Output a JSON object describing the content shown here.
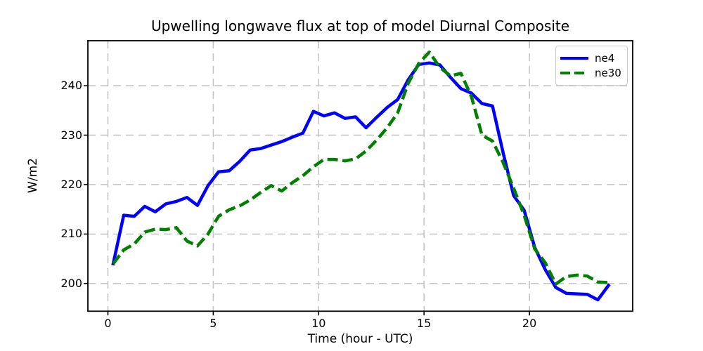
{
  "chart_data": {
    "type": "line",
    "title": "Upwelling longwave flux at top of model Diurnal Composite",
    "xlabel": "Time (hour - UTC)",
    "ylabel": "W/m2",
    "xlim": [
      -0.95,
      24.9
    ],
    "ylim": [
      194.4,
      249.1
    ],
    "xticks": [
      0,
      5,
      10,
      15,
      20
    ],
    "yticks": [
      200,
      210,
      220,
      230,
      240
    ],
    "grid": true,
    "grid_color": "#c6c6c6",
    "legend_position": "upper right",
    "x": [
      0.25,
      0.75,
      1.25,
      1.75,
      2.25,
      2.75,
      3.25,
      3.75,
      4.25,
      4.75,
      5.25,
      5.75,
      6.25,
      6.75,
      7.25,
      7.75,
      8.25,
      8.75,
      9.25,
      9.75,
      10.25,
      10.75,
      11.25,
      11.75,
      12.25,
      12.75,
      13.25,
      13.75,
      14.25,
      14.75,
      15.25,
      15.75,
      16.25,
      16.75,
      17.25,
      17.75,
      18.25,
      18.75,
      19.25,
      19.75,
      20.25,
      20.75,
      21.25,
      21.75,
      22.25,
      22.75,
      23.25,
      23.75
    ],
    "series": [
      {
        "name": "ne4",
        "color": "#0000ff",
        "linestyle": "solid",
        "linewidth": 4.5,
        "values": [
          204.0,
          213.8,
          213.6,
          215.6,
          214.5,
          216.1,
          216.6,
          217.4,
          215.8,
          219.8,
          222.6,
          222.8,
          224.7,
          227.0,
          227.3,
          228.0,
          228.7,
          229.6,
          230.4,
          234.8,
          233.9,
          234.5,
          233.4,
          233.7,
          231.5,
          233.6,
          235.6,
          237.2,
          241.2,
          244.3,
          244.6,
          244.2,
          241.7,
          239.4,
          238.5,
          236.4,
          235.9,
          226.5,
          217.8,
          214.8,
          207.3,
          202.8,
          199.2,
          198.0,
          197.9,
          197.8,
          196.7,
          199.6
        ]
      },
      {
        "name": "ne30",
        "color": "#008000",
        "linestyle": "dashed",
        "linewidth": 4.5,
        "values": [
          204.0,
          206.8,
          208.0,
          210.4,
          211.0,
          210.9,
          211.3,
          208.6,
          207.6,
          210.0,
          213.6,
          214.9,
          215.7,
          216.9,
          218.4,
          219.8,
          218.7,
          220.4,
          221.8,
          223.6,
          225.1,
          225.1,
          224.8,
          225.2,
          226.8,
          229.0,
          231.5,
          234.5,
          240.5,
          244.5,
          246.8,
          243.7,
          242.0,
          242.5,
          237.8,
          230.0,
          228.8,
          224.5,
          219.3,
          213.8,
          207.0,
          204.2,
          199.9,
          201.4,
          201.7,
          201.5,
          200.3,
          200.2
        ]
      }
    ]
  }
}
